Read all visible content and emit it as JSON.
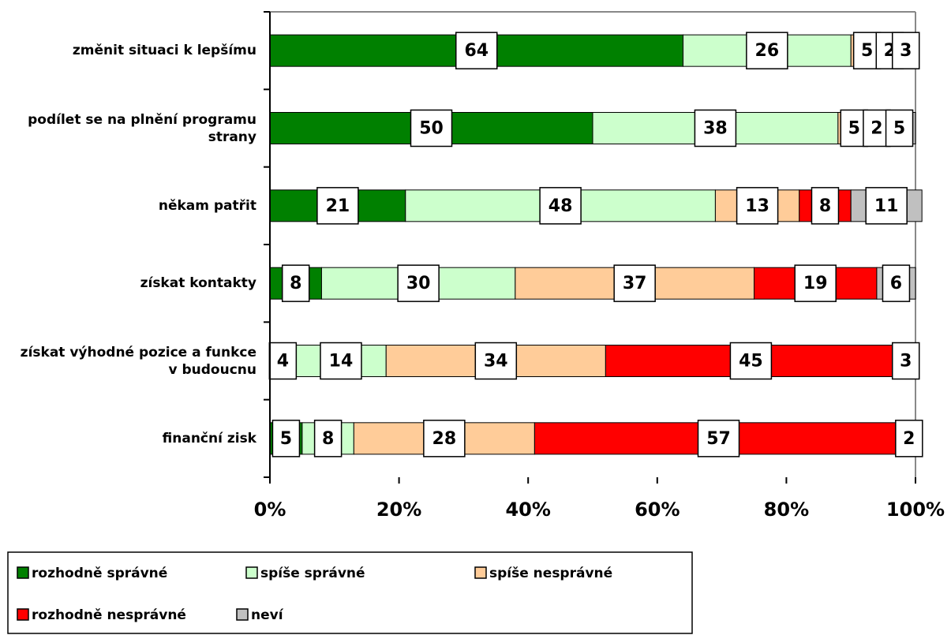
{
  "chart_data": {
    "type": "stacked-barh",
    "categories": [
      "změnit situaci k lepšímu",
      "podílet se na plnění programu strany",
      "někam patřit",
      "získat kontakty",
      "získat výhodné pozice a funkce v budoucnu",
      "finanční zisk"
    ],
    "series": [
      {
        "name": "rozhodně správné",
        "color": "#008000",
        "values": [
          64,
          50,
          21,
          8,
          4,
          5
        ]
      },
      {
        "name": "spíše správné",
        "color": "#ccffcc",
        "values": [
          26,
          38,
          48,
          30,
          14,
          8
        ]
      },
      {
        "name": "spíše nesprávné",
        "color": "#ffcc99",
        "values": [
          5,
          5,
          13,
          37,
          34,
          28
        ]
      },
      {
        "name": "rozhodně nesprávné",
        "color": "#ff0000",
        "values": [
          2,
          2,
          8,
          19,
          45,
          57
        ]
      },
      {
        "name": "neví",
        "color": "#c0c0c0",
        "values": [
          3,
          5,
          11,
          6,
          3,
          2
        ]
      }
    ],
    "xlim": [
      0,
      100
    ],
    "xticks": [
      {
        "value": 0,
        "label": "0%"
      },
      {
        "value": 20,
        "label": "20%"
      },
      {
        "value": 40,
        "label": "40%"
      },
      {
        "value": 60,
        "label": "60%"
      },
      {
        "value": 80,
        "label": "80%"
      },
      {
        "value": 100,
        "label": "100%"
      }
    ],
    "legend": "bottom-left"
  }
}
